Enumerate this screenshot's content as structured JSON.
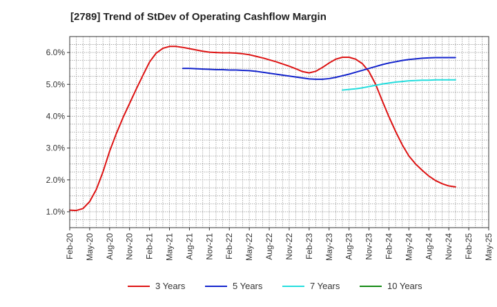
{
  "chart_data": {
    "type": "line",
    "title": "[2789]  Trend of StDev of Operating Cashflow Margin",
    "xlabel": "",
    "ylabel": "",
    "ylim": [
      0.5,
      6.5
    ],
    "y_ticks": [
      1.0,
      2.0,
      3.0,
      4.0,
      5.0,
      6.0
    ],
    "y_tick_labels": [
      "1.0%",
      "2.0%",
      "3.0%",
      "4.0%",
      "5.0%",
      "6.0%"
    ],
    "x_start": "2020-02",
    "x_end": "2025-05",
    "x_tick_labels": [
      "Feb-20",
      "May-20",
      "Aug-20",
      "Nov-20",
      "Feb-21",
      "May-21",
      "Aug-21",
      "Nov-21",
      "Feb-22",
      "May-22",
      "Aug-22",
      "Nov-22",
      "Feb-23",
      "May-23",
      "Aug-23",
      "Nov-23",
      "Feb-24",
      "May-24",
      "Aug-24",
      "Nov-24",
      "Feb-25",
      "May-25"
    ],
    "grid": true,
    "legend_position": "bottom",
    "series": [
      {
        "name": "3 Years",
        "color": "#dd1111",
        "points": [
          [
            "2020-02",
            1.05
          ],
          [
            "2020-03",
            1.04
          ],
          [
            "2020-04",
            1.1
          ],
          [
            "2020-05",
            1.32
          ],
          [
            "2020-06",
            1.7
          ],
          [
            "2020-07",
            2.25
          ],
          [
            "2020-08",
            2.9
          ],
          [
            "2020-09",
            3.45
          ],
          [
            "2020-10",
            3.95
          ],
          [
            "2020-11",
            4.4
          ],
          [
            "2020-12",
            4.85
          ],
          [
            "2021-01",
            5.28
          ],
          [
            "2021-02",
            5.7
          ],
          [
            "2021-03",
            5.98
          ],
          [
            "2021-04",
            6.13
          ],
          [
            "2021-05",
            6.19
          ],
          [
            "2021-06",
            6.19
          ],
          [
            "2021-07",
            6.16
          ],
          [
            "2021-08",
            6.12
          ],
          [
            "2021-09",
            6.08
          ],
          [
            "2021-10",
            6.04
          ],
          [
            "2021-11",
            6.01
          ],
          [
            "2021-12",
            6.0
          ],
          [
            "2022-01",
            5.99
          ],
          [
            "2022-02",
            5.99
          ],
          [
            "2022-03",
            5.98
          ],
          [
            "2022-04",
            5.96
          ],
          [
            "2022-05",
            5.93
          ],
          [
            "2022-06",
            5.88
          ],
          [
            "2022-07",
            5.83
          ],
          [
            "2022-08",
            5.77
          ],
          [
            "2022-09",
            5.71
          ],
          [
            "2022-10",
            5.64
          ],
          [
            "2022-11",
            5.57
          ],
          [
            "2022-12",
            5.49
          ],
          [
            "2023-01",
            5.4
          ],
          [
            "2023-02",
            5.36
          ],
          [
            "2023-03",
            5.41
          ],
          [
            "2023-04",
            5.53
          ],
          [
            "2023-05",
            5.67
          ],
          [
            "2023-06",
            5.79
          ],
          [
            "2023-07",
            5.85
          ],
          [
            "2023-08",
            5.85
          ],
          [
            "2023-09",
            5.79
          ],
          [
            "2023-10",
            5.65
          ],
          [
            "2023-11",
            5.4
          ],
          [
            "2023-12",
            5.0
          ],
          [
            "2024-01",
            4.48
          ],
          [
            "2024-02",
            3.98
          ],
          [
            "2024-03",
            3.52
          ],
          [
            "2024-04",
            3.1
          ],
          [
            "2024-05",
            2.75
          ],
          [
            "2024-06",
            2.5
          ],
          [
            "2024-07",
            2.3
          ],
          [
            "2024-08",
            2.12
          ],
          [
            "2024-09",
            1.98
          ],
          [
            "2024-10",
            1.88
          ],
          [
            "2024-11",
            1.81
          ],
          [
            "2024-12",
            1.78
          ]
        ]
      },
      {
        "name": "5 Years",
        "color": "#1122cc",
        "points": [
          [
            "2021-07",
            5.5
          ],
          [
            "2021-08",
            5.5
          ],
          [
            "2021-09",
            5.49
          ],
          [
            "2021-10",
            5.48
          ],
          [
            "2021-11",
            5.47
          ],
          [
            "2021-12",
            5.46
          ],
          [
            "2022-01",
            5.46
          ],
          [
            "2022-02",
            5.45
          ],
          [
            "2022-03",
            5.45
          ],
          [
            "2022-04",
            5.44
          ],
          [
            "2022-05",
            5.43
          ],
          [
            "2022-06",
            5.41
          ],
          [
            "2022-07",
            5.38
          ],
          [
            "2022-08",
            5.35
          ],
          [
            "2022-09",
            5.32
          ],
          [
            "2022-10",
            5.29
          ],
          [
            "2022-11",
            5.26
          ],
          [
            "2022-12",
            5.23
          ],
          [
            "2023-01",
            5.2
          ],
          [
            "2023-02",
            5.17
          ],
          [
            "2023-03",
            5.16
          ],
          [
            "2023-04",
            5.16
          ],
          [
            "2023-05",
            5.18
          ],
          [
            "2023-06",
            5.22
          ],
          [
            "2023-07",
            5.27
          ],
          [
            "2023-08",
            5.32
          ],
          [
            "2023-09",
            5.38
          ],
          [
            "2023-10",
            5.44
          ],
          [
            "2023-11",
            5.5
          ],
          [
            "2023-12",
            5.56
          ],
          [
            "2024-01",
            5.62
          ],
          [
            "2024-02",
            5.67
          ],
          [
            "2024-03",
            5.71
          ],
          [
            "2024-04",
            5.75
          ],
          [
            "2024-05",
            5.78
          ],
          [
            "2024-06",
            5.8
          ],
          [
            "2024-07",
            5.82
          ],
          [
            "2024-08",
            5.83
          ],
          [
            "2024-09",
            5.84
          ],
          [
            "2024-10",
            5.84
          ],
          [
            "2024-11",
            5.84
          ],
          [
            "2024-12",
            5.84
          ]
        ]
      },
      {
        "name": "7 Years",
        "color": "#22dddd",
        "points": [
          [
            "2023-07",
            4.82
          ],
          [
            "2023-08",
            4.84
          ],
          [
            "2023-09",
            4.86
          ],
          [
            "2023-10",
            4.89
          ],
          [
            "2023-11",
            4.93
          ],
          [
            "2023-12",
            4.97
          ],
          [
            "2024-01",
            5.01
          ],
          [
            "2024-02",
            5.04
          ],
          [
            "2024-03",
            5.07
          ],
          [
            "2024-04",
            5.09
          ],
          [
            "2024-05",
            5.11
          ],
          [
            "2024-06",
            5.12
          ],
          [
            "2024-07",
            5.13
          ],
          [
            "2024-08",
            5.13
          ],
          [
            "2024-09",
            5.14
          ],
          [
            "2024-10",
            5.14
          ],
          [
            "2024-11",
            5.14
          ],
          [
            "2024-12",
            5.14
          ]
        ]
      },
      {
        "name": "10 Years",
        "color": "#118811",
        "points": []
      }
    ]
  }
}
